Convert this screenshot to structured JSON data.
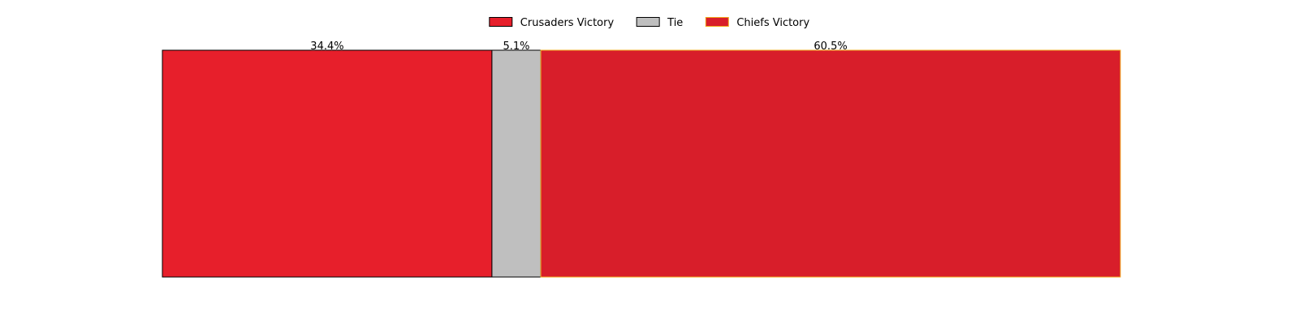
{
  "chart_data": {
    "type": "bar",
    "orientation": "horizontal-stacked",
    "categories": [
      "Crusaders Victory",
      "Tie",
      "Chiefs Victory"
    ],
    "series": [
      {
        "name": "Crusaders Victory",
        "value": 34.4,
        "label": "34.4%",
        "color": "#e71f2b",
        "edge": "#000000"
      },
      {
        "name": "Tie",
        "value": 5.1,
        "label": "5.1%",
        "color": "#bfbfbf",
        "edge": "#000000"
      },
      {
        "name": "Chiefs Victory",
        "value": 60.5,
        "label": "60.5%",
        "color": "#d81e2a",
        "edge": "#f2a81d"
      }
    ],
    "xlim": [
      0,
      100
    ],
    "legend": "top-center",
    "grid": false,
    "axes_visible": false
  }
}
